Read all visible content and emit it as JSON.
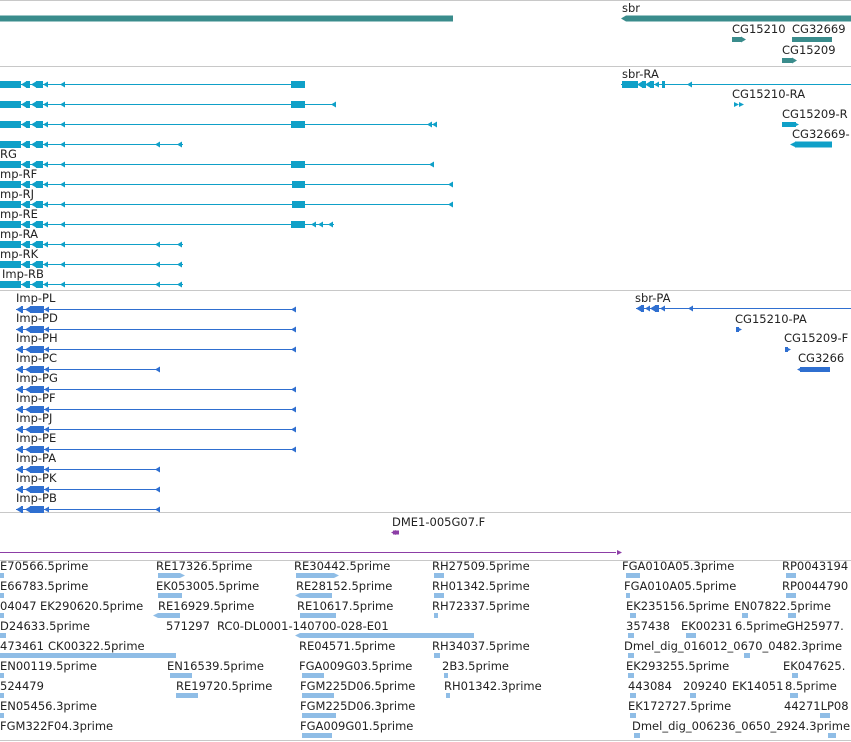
{
  "colors": {
    "gene": "#3a8c8c",
    "mrna": "#0fa0c8",
    "protein": "#2f6fd0",
    "est_arrow": "#8c3ea6",
    "est": "#8fbde6",
    "separator": "#c8c8c8"
  },
  "tracks": {
    "genes": [
      {
        "name": "sbr"
      },
      {
        "name": "CG15210"
      },
      {
        "name": "CG32669"
      },
      {
        "name": "CG15209"
      }
    ],
    "transcripts_right": [
      {
        "name": "sbr-RA"
      },
      {
        "name": "CG15210-RA"
      },
      {
        "name": "CG15209-R"
      },
      {
        "name": "CG32669-"
      }
    ],
    "transcripts_left": [
      {
        "name": "RG"
      },
      {
        "name": "mp-RF"
      },
      {
        "name": "mp-RJ"
      },
      {
        "name": "mp-RE"
      },
      {
        "name": "mp-RA"
      },
      {
        "name": "mp-RK"
      },
      {
        "name": "Imp-RB"
      }
    ],
    "proteins_left": [
      {
        "name": "Imp-PL"
      },
      {
        "name": "Imp-PD"
      },
      {
        "name": "Imp-PH"
      },
      {
        "name": "Imp-PC"
      },
      {
        "name": "Imp-PG"
      },
      {
        "name": "Imp-PF"
      },
      {
        "name": "Imp-PJ"
      },
      {
        "name": "Imp-PE"
      },
      {
        "name": "Imp-PA"
      },
      {
        "name": "Imp-PK"
      },
      {
        "name": "Imp-PB"
      }
    ],
    "proteins_right": [
      {
        "name": "sbr-PA"
      },
      {
        "name": "CG15210-PA"
      },
      {
        "name": "CG15209-F"
      },
      {
        "name": "CG3266"
      }
    ],
    "clone": {
      "name": "DME1-005G07.F"
    },
    "ests": [
      {
        "name": "E70566.5prime"
      },
      {
        "name": "E66783.5prime"
      },
      {
        "name": "04047"
      },
      {
        "name": "EK290620.5prime"
      },
      {
        "name": "D24633.5prime"
      },
      {
        "name": "473461"
      },
      {
        "name": "CK00322.5prime"
      },
      {
        "name": "EN00119.5prime"
      },
      {
        "name": "524479"
      },
      {
        "name": "EN05456.3prime"
      },
      {
        "name": "FGM322F04.3prime"
      },
      {
        "name": "RE17326.5prime"
      },
      {
        "name": "EK053005.5prime"
      },
      {
        "name": "RE16929.5prime"
      },
      {
        "name": "571297"
      },
      {
        "name": "RC0-DL0001-140700-028-E01"
      },
      {
        "name": "EN16539.5prime"
      },
      {
        "name": "RE19720.5prime"
      },
      {
        "name": "RE30442.5prime"
      },
      {
        "name": "RE28152.5prime"
      },
      {
        "name": "RE10617.5prime"
      },
      {
        "name": "RE04571.5prime"
      },
      {
        "name": "FGA009G03.5prime"
      },
      {
        "name": "FGM225D06.5prime"
      },
      {
        "name": "FGM225D06.3prime"
      },
      {
        "name": "FGA009G01.5prime"
      },
      {
        "name": "RH27509.5prime"
      },
      {
        "name": "RH01342.5prime"
      },
      {
        "name": "RH72337.5prime"
      },
      {
        "name": "RH34037.5prime"
      },
      {
        "name": "2B3.5prime"
      },
      {
        "name": "RH01342.3prime"
      },
      {
        "name": "FGA010A05.3prime"
      },
      {
        "name": "FGA010A05.5prime"
      },
      {
        "name": "EK235156.5prime"
      },
      {
        "name": "357438"
      },
      {
        "name": "Dmel_dig_016012_0670_0482.3prime"
      },
      {
        "name": "EK293255.5prime"
      },
      {
        "name": "443084"
      },
      {
        "name": "209240"
      },
      {
        "name": "EK172727.5prime"
      },
      {
        "name": "Dmel_dig_006236_0650_2924.3prime"
      },
      {
        "name": "EN07822.5prime"
      },
      {
        "name": "EK00231"
      },
      {
        "name": "6.5prime"
      },
      {
        "name": "EK14051"
      },
      {
        "name": "8.5prime"
      },
      {
        "name": "RP0043194"
      },
      {
        "name": "RP0044790"
      },
      {
        "name": "GH25977."
      },
      {
        "name": "EK047625."
      },
      {
        "name": "44271LP08"
      }
    ]
  }
}
